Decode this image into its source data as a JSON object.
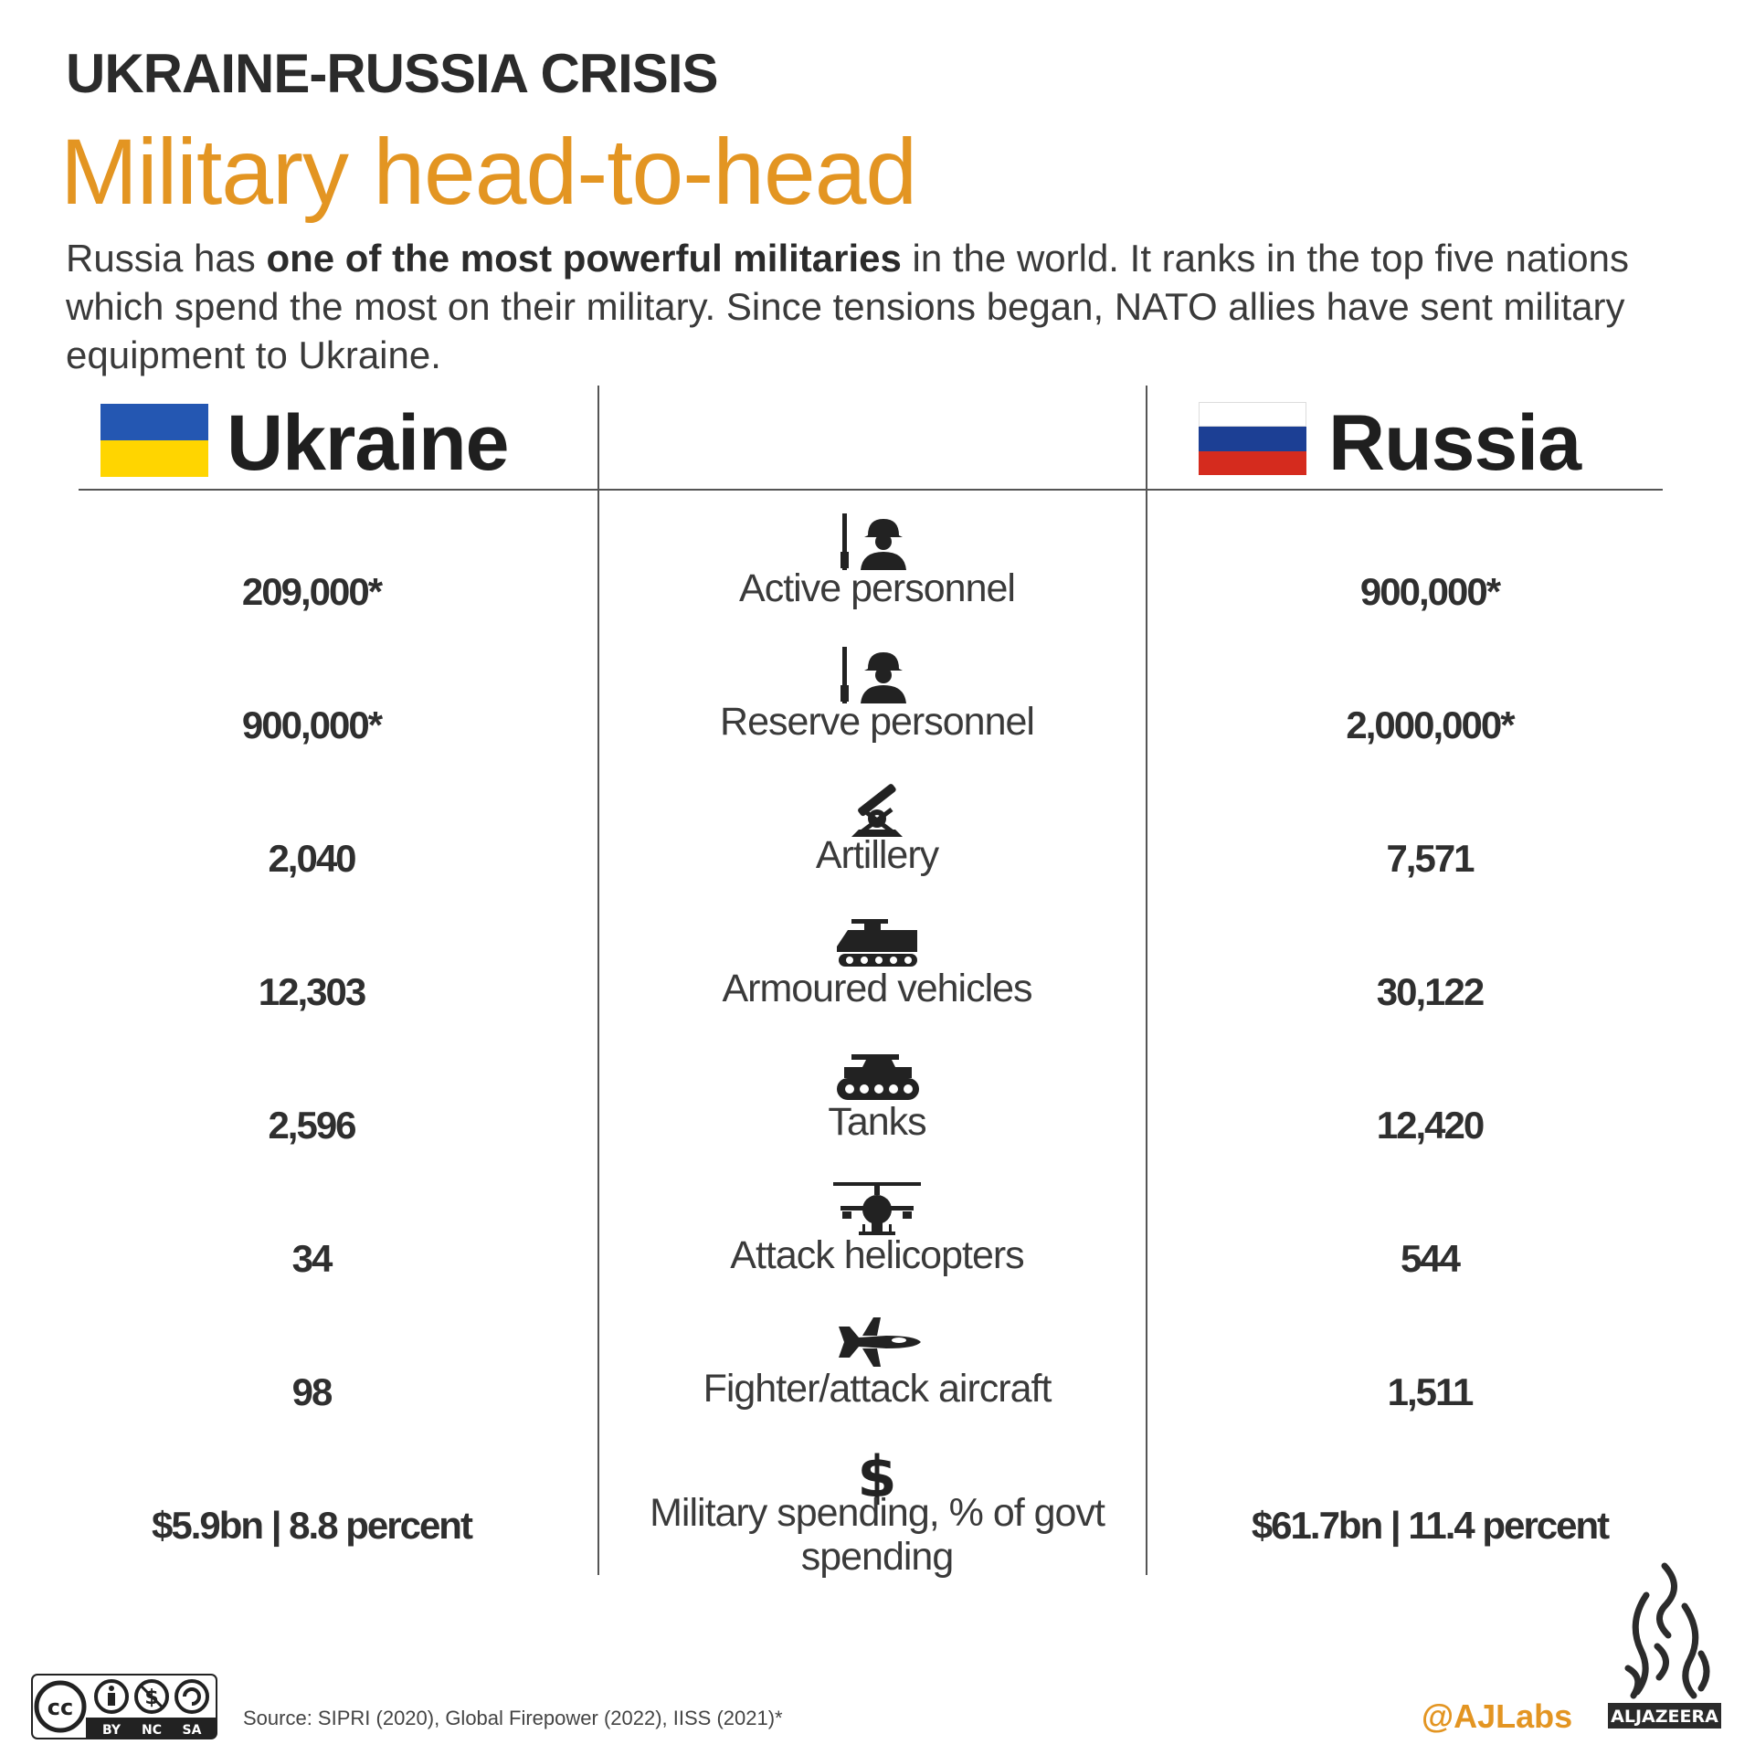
{
  "header": {
    "kicker": "UKRAINE-RUSSIA CRISIS",
    "title": "Military head-to-head",
    "intro_before": "Russia has ",
    "intro_bold": "one of the most powerful militaries",
    "intro_after": " in the world. It ranks in the top five nations which spend the most on their military. Since tensions began, NATO allies have sent military equipment to Ukraine."
  },
  "countries": {
    "left": {
      "name": "Ukraine",
      "flag_colors": [
        "#2457b2",
        "#ffd500"
      ]
    },
    "right": {
      "name": "Russia",
      "flag_colors": [
        "#ffffff",
        "#1c3f94",
        "#d52b1e"
      ]
    }
  },
  "rows": [
    {
      "icon": "soldier-icon",
      "label": "Active personnel",
      "ukraine": "209,000*",
      "russia": "900,000*"
    },
    {
      "icon": "soldier-icon",
      "label": "Reserve personnel",
      "ukraine": "900,000*",
      "russia": "2,000,000*"
    },
    {
      "icon": "artillery-icon",
      "label": "Artillery",
      "ukraine": "2,040",
      "russia": "7,571"
    },
    {
      "icon": "armoured-vehicle-icon",
      "label": "Armoured vehicles",
      "ukraine": "12,303",
      "russia": "30,122"
    },
    {
      "icon": "tank-icon",
      "label": "Tanks",
      "ukraine": "2,596",
      "russia": "12,420"
    },
    {
      "icon": "helicopter-icon",
      "label": "Attack helicopters",
      "ukraine": "34",
      "russia": "544"
    },
    {
      "icon": "fighter-jet-icon",
      "label": "Fighter/attack aircraft",
      "ukraine": "98",
      "russia": "1,511"
    },
    {
      "icon": "dollar-icon",
      "label": "Military spending, % of govt spending",
      "ukraine": "$5.9bn | 8.8 percent",
      "russia": "$61.7bn | 11.4 percent"
    }
  ],
  "footer": {
    "source": "Source: SIPRI (2020), Global Firepower (2022), IISS (2021)*",
    "handle": "@AJLabs",
    "license_labels": [
      "BY",
      "NC",
      "SA"
    ],
    "brand": "ALJAZEERA"
  },
  "colors": {
    "accent": "#e39522",
    "text": "#2b2b2b",
    "rule": "#555555"
  }
}
